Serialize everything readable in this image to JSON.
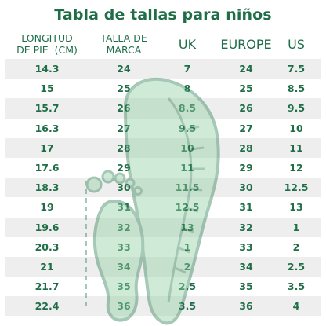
{
  "title": "Tabla de tallas para niños",
  "headers": {
    "foot_length_line1": "LONGITUD",
    "foot_length_line2": "DE PIE  (CM)",
    "brand_size_line1": "TALLA DE",
    "brand_size_line2": "MARCA",
    "uk": "UK",
    "europe": "EUROPE",
    "us": "US"
  },
  "rows": [
    {
      "foot": "14.3",
      "brand": "24",
      "uk": "7",
      "eu": "24",
      "us": "7.5"
    },
    {
      "foot": "15",
      "brand": "25",
      "uk": "8",
      "eu": "25",
      "us": "8.5"
    },
    {
      "foot": "15.7",
      "brand": "26",
      "uk": "8.5",
      "eu": "26",
      "us": "9.5"
    },
    {
      "foot": "16.3",
      "brand": "27",
      "uk": "9.5",
      "eu": "27",
      "us": "10"
    },
    {
      "foot": "17",
      "brand": "28",
      "uk": "10",
      "eu": "28",
      "us": "11"
    },
    {
      "foot": "17.6",
      "brand": "29",
      "uk": "11",
      "eu": "29",
      "us": "12"
    },
    {
      "foot": "18.3",
      "brand": "30",
      "uk": "11.5",
      "eu": "30",
      "us": "12.5"
    },
    {
      "foot": "19",
      "brand": "31",
      "uk": "12.5",
      "eu": "31",
      "us": "13"
    },
    {
      "foot": "19.6",
      "brand": "32",
      "uk": "13",
      "eu": "32",
      "us": "1"
    },
    {
      "foot": "20.3",
      "brand": "33",
      "uk": "1",
      "eu": "33",
      "us": "2"
    },
    {
      "foot": "21",
      "brand": "34",
      "uk": "2",
      "eu": "34",
      "us": "2.5"
    },
    {
      "foot": "21.7",
      "brand": "35",
      "uk": "2.5",
      "eu": "35",
      "us": "3.5"
    },
    {
      "foot": "22.4",
      "brand": "36",
      "uk": "3.5",
      "eu": "36",
      "us": "4"
    }
  ],
  "colors": {
    "text": "#1f6e48",
    "stripe": "#eeeeee",
    "watermark_fill": "#8fd0a2",
    "watermark_stroke": "#2e7d52"
  },
  "icons": {
    "watermark": "foot-measure-icon"
  }
}
